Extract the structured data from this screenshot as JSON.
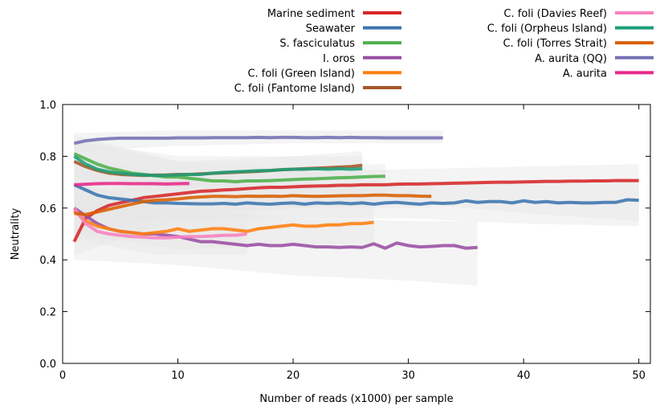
{
  "chart_data": {
    "type": "line",
    "title": "",
    "xlabel": "Number of reads (x1000) per sample",
    "ylabel": "Neutrality",
    "xlim": [
      0,
      51
    ],
    "ylim": [
      0,
      1
    ],
    "x_ticks": [
      0,
      10,
      20,
      30,
      40,
      50
    ],
    "y_ticks": [
      "0.0",
      "0.2",
      "0.4",
      "0.6",
      "0.8",
      "1.0"
    ],
    "grid": false,
    "legend_position": "top",
    "confidence_band_color": "#e6e6e6",
    "series": [
      {
        "name": "Marine sediment",
        "color": "#d62728",
        "x": [
          1,
          2,
          3,
          4,
          5,
          6,
          7,
          8,
          9,
          10,
          11,
          12,
          13,
          14,
          15,
          16,
          17,
          18,
          19,
          20,
          21,
          22,
          23,
          24,
          25,
          26,
          27,
          28,
          29,
          30,
          31,
          32,
          33,
          34,
          35,
          36,
          37,
          38,
          39,
          40,
          41,
          42,
          43,
          44,
          45,
          46,
          47,
          48,
          49,
          50
        ],
        "y": [
          0.47,
          0.56,
          0.59,
          0.61,
          0.62,
          0.63,
          0.64,
          0.645,
          0.65,
          0.655,
          0.66,
          0.665,
          0.667,
          0.67,
          0.672,
          0.675,
          0.678,
          0.68,
          0.68,
          0.682,
          0.684,
          0.685,
          0.686,
          0.688,
          0.688,
          0.69,
          0.69,
          0.69,
          0.692,
          0.693,
          0.693,
          0.694,
          0.695,
          0.696,
          0.697,
          0.698,
          0.699,
          0.7,
          0.7,
          0.701,
          0.702,
          0.703,
          0.703,
          0.704,
          0.704,
          0.705,
          0.705,
          0.706,
          0.706,
          0.706
        ],
        "band": [
          [
            1,
            0.42,
            0.62
          ],
          [
            10,
            0.55,
            0.72
          ],
          [
            20,
            0.6,
            0.74
          ],
          [
            30,
            0.62,
            0.75
          ],
          [
            40,
            0.58,
            0.76
          ],
          [
            50,
            0.55,
            0.77
          ]
        ]
      },
      {
        "name": "Seawater",
        "color": "#3b75af",
        "x": [
          1,
          2,
          3,
          4,
          5,
          6,
          7,
          8,
          9,
          10,
          11,
          12,
          13,
          14,
          15,
          16,
          17,
          18,
          19,
          20,
          21,
          22,
          23,
          24,
          25,
          26,
          27,
          28,
          29,
          30,
          31,
          32,
          33,
          34,
          35,
          36,
          37,
          38,
          39,
          40,
          41,
          42,
          43,
          44,
          45,
          46,
          47,
          48,
          49,
          50
        ],
        "y": [
          0.69,
          0.67,
          0.65,
          0.64,
          0.635,
          0.63,
          0.625,
          0.62,
          0.62,
          0.618,
          0.617,
          0.616,
          0.616,
          0.618,
          0.615,
          0.62,
          0.617,
          0.615,
          0.618,
          0.62,
          0.615,
          0.62,
          0.618,
          0.62,
          0.617,
          0.62,
          0.615,
          0.62,
          0.622,
          0.618,
          0.615,
          0.62,
          0.618,
          0.62,
          0.628,
          0.622,
          0.625,
          0.625,
          0.62,
          0.628,
          0.622,
          0.625,
          0.62,
          0.622,
          0.62,
          0.62,
          0.622,
          0.622,
          0.632,
          0.63
        ],
        "band": [
          [
            1,
            0.58,
            0.8
          ],
          [
            10,
            0.55,
            0.72
          ],
          [
            20,
            0.56,
            0.7
          ],
          [
            30,
            0.56,
            0.69
          ],
          [
            40,
            0.54,
            0.7
          ],
          [
            50,
            0.53,
            0.71
          ]
        ]
      },
      {
        "name": "S. fasciculatus",
        "color": "#4daf4a",
        "x": [
          1,
          2,
          3,
          4,
          5,
          6,
          7,
          8,
          9,
          10,
          11,
          12,
          13,
          14,
          15,
          16,
          17,
          18,
          19,
          20,
          21,
          22,
          23,
          24,
          25,
          26,
          27,
          28
        ],
        "y": [
          0.81,
          0.79,
          0.77,
          0.755,
          0.745,
          0.735,
          0.73,
          0.725,
          0.72,
          0.72,
          0.715,
          0.71,
          0.705,
          0.705,
          0.702,
          0.705,
          0.705,
          0.706,
          0.708,
          0.71,
          0.712,
          0.713,
          0.715,
          0.717,
          0.718,
          0.72,
          0.722,
          0.723
        ],
        "band": [
          [
            1,
            0.72,
            0.88
          ],
          [
            10,
            0.68,
            0.78
          ],
          [
            20,
            0.66,
            0.76
          ],
          [
            28,
            0.66,
            0.77
          ]
        ]
      },
      {
        "name": "I. oros",
        "color": "#984ea3",
        "x": [
          1,
          2,
          3,
          4,
          5,
          6,
          7,
          8,
          9,
          10,
          11,
          12,
          13,
          14,
          15,
          16,
          17,
          18,
          19,
          20,
          21,
          22,
          23,
          24,
          25,
          26,
          27,
          28,
          29,
          30,
          31,
          32,
          33,
          34,
          35,
          36
        ],
        "y": [
          0.6,
          0.57,
          0.54,
          0.52,
          0.51,
          0.505,
          0.5,
          0.5,
          0.495,
          0.49,
          0.48,
          0.47,
          0.47,
          0.465,
          0.46,
          0.455,
          0.46,
          0.455,
          0.455,
          0.46,
          0.455,
          0.45,
          0.45,
          0.448,
          0.45,
          0.448,
          0.462,
          0.445,
          0.465,
          0.455,
          0.45,
          0.452,
          0.455,
          0.455,
          0.445,
          0.448
        ],
        "band": [
          [
            1,
            0.4,
            0.7
          ],
          [
            10,
            0.38,
            0.6
          ],
          [
            20,
            0.34,
            0.56
          ],
          [
            30,
            0.32,
            0.55
          ],
          [
            36,
            0.3,
            0.55
          ]
        ]
      },
      {
        "name": "C. foli (Green Island)",
        "color": "#ff7f0e",
        "x": [
          1,
          2,
          3,
          4,
          5,
          6,
          7,
          8,
          9,
          10,
          11,
          12,
          13,
          14,
          15,
          16,
          17,
          18,
          19,
          20,
          21,
          22,
          23,
          24,
          25,
          26,
          27
        ],
        "y": [
          0.59,
          0.55,
          0.53,
          0.52,
          0.51,
          0.505,
          0.5,
          0.505,
          0.51,
          0.52,
          0.51,
          0.515,
          0.52,
          0.52,
          0.515,
          0.51,
          0.52,
          0.525,
          0.53,
          0.535,
          0.53,
          0.53,
          0.535,
          0.535,
          0.54,
          0.54,
          0.545
        ],
        "band": [
          [
            1,
            0.5,
            0.7
          ],
          [
            10,
            0.44,
            0.6
          ],
          [
            20,
            0.46,
            0.62
          ],
          [
            27,
            0.46,
            0.64
          ]
        ]
      },
      {
        "name": "C. foli (Fantome Island)",
        "color": "#a65628",
        "x": [
          1,
          2,
          3,
          4,
          5,
          6,
          7,
          8,
          9,
          10,
          11,
          12,
          13,
          14,
          15,
          16,
          17,
          18,
          19,
          20,
          21,
          22,
          23,
          24,
          25,
          26
        ],
        "y": [
          0.78,
          0.76,
          0.745,
          0.735,
          0.73,
          0.728,
          0.726,
          0.727,
          0.728,
          0.73,
          0.73,
          0.732,
          0.734,
          0.736,
          0.738,
          0.74,
          0.742,
          0.745,
          0.748,
          0.75,
          0.752,
          0.754,
          0.756,
          0.758,
          0.76,
          0.765
        ],
        "band": [
          [
            1,
            0.7,
            0.86
          ],
          [
            10,
            0.68,
            0.8
          ],
          [
            20,
            0.7,
            0.8
          ],
          [
            26,
            0.71,
            0.82
          ]
        ]
      },
      {
        "name": "C. foli (Davies Reef)",
        "color": "#f781bf",
        "x": [
          1,
          2,
          3,
          4,
          5,
          6,
          7,
          8,
          9,
          10,
          11,
          12,
          13,
          14,
          15,
          16
        ],
        "y": [
          0.6,
          0.54,
          0.51,
          0.5,
          0.495,
          0.49,
          0.488,
          0.485,
          0.485,
          0.488,
          0.49,
          0.49,
          0.492,
          0.495,
          0.495,
          0.5
        ],
        "band": [
          [
            1,
            0.48,
            0.7
          ],
          [
            8,
            0.42,
            0.58
          ],
          [
            16,
            0.42,
            0.58
          ]
        ]
      },
      {
        "name": "C. foli (Orpheus Island)",
        "color": "#1b9e77",
        "x": [
          1,
          2,
          3,
          4,
          5,
          6,
          7,
          8,
          9,
          10,
          11,
          12,
          13,
          14,
          15,
          16,
          17,
          18,
          19,
          20,
          21,
          22,
          23,
          24,
          25,
          26
        ],
        "y": [
          0.8,
          0.77,
          0.75,
          0.74,
          0.735,
          0.73,
          0.728,
          0.726,
          0.726,
          0.728,
          0.73,
          0.73,
          0.735,
          0.738,
          0.74,
          0.742,
          0.744,
          0.745,
          0.748,
          0.75,
          0.75,
          0.752,
          0.75,
          0.752,
          0.75,
          0.752
        ],
        "band": [
          [
            1,
            0.72,
            0.86
          ],
          [
            10,
            0.68,
            0.78
          ],
          [
            20,
            0.7,
            0.8
          ],
          [
            26,
            0.71,
            0.8
          ]
        ]
      },
      {
        "name": "C. foli (Torres Strait)",
        "color": "#d95f02",
        "x": [
          1,
          2,
          3,
          4,
          5,
          6,
          7,
          8,
          9,
          10,
          11,
          12,
          13,
          14,
          15,
          16,
          17,
          18,
          19,
          20,
          21,
          22,
          23,
          24,
          25,
          26,
          27,
          28,
          29,
          30,
          31,
          32
        ],
        "y": [
          0.58,
          0.575,
          0.585,
          0.595,
          0.605,
          0.615,
          0.625,
          0.63,
          0.632,
          0.635,
          0.64,
          0.643,
          0.645,
          0.645,
          0.644,
          0.646,
          0.645,
          0.646,
          0.645,
          0.648,
          0.646,
          0.645,
          0.646,
          0.647,
          0.648,
          0.648,
          0.65,
          0.65,
          0.648,
          0.648,
          0.646,
          0.645
        ],
        "band": [
          [
            1,
            0.5,
            0.66
          ],
          [
            10,
            0.58,
            0.7
          ],
          [
            20,
            0.6,
            0.7
          ],
          [
            32,
            0.6,
            0.7
          ]
        ]
      },
      {
        "name": "A. aurita (QQ)",
        "color": "#7570b3",
        "x": [
          1,
          2,
          3,
          4,
          5,
          6,
          7,
          8,
          9,
          10,
          11,
          12,
          13,
          14,
          15,
          16,
          17,
          18,
          19,
          20,
          21,
          22,
          23,
          24,
          25,
          26,
          27,
          28,
          29,
          30,
          31,
          32,
          33
        ],
        "y": [
          0.85,
          0.86,
          0.865,
          0.868,
          0.87,
          0.87,
          0.87,
          0.87,
          0.87,
          0.871,
          0.871,
          0.871,
          0.872,
          0.872,
          0.872,
          0.872,
          0.873,
          0.872,
          0.873,
          0.873,
          0.872,
          0.872,
          0.873,
          0.872,
          0.873,
          0.872,
          0.872,
          0.871,
          0.871,
          0.871,
          0.871,
          0.871,
          0.871
        ],
        "band": [
          [
            1,
            0.82,
            0.89
          ],
          [
            10,
            0.84,
            0.9
          ],
          [
            20,
            0.85,
            0.9
          ],
          [
            33,
            0.85,
            0.9
          ]
        ]
      },
      {
        "name": "A. aurita",
        "color": "#e7298a",
        "x": [
          1,
          2,
          3,
          4,
          5,
          6,
          7,
          8,
          9,
          10,
          11
        ],
        "y": [
          0.69,
          0.692,
          0.694,
          0.695,
          0.695,
          0.694,
          0.694,
          0.694,
          0.693,
          0.694,
          0.695
        ],
        "band": [
          [
            1,
            0.66,
            0.73
          ],
          [
            11,
            0.66,
            0.73
          ]
        ]
      }
    ]
  }
}
